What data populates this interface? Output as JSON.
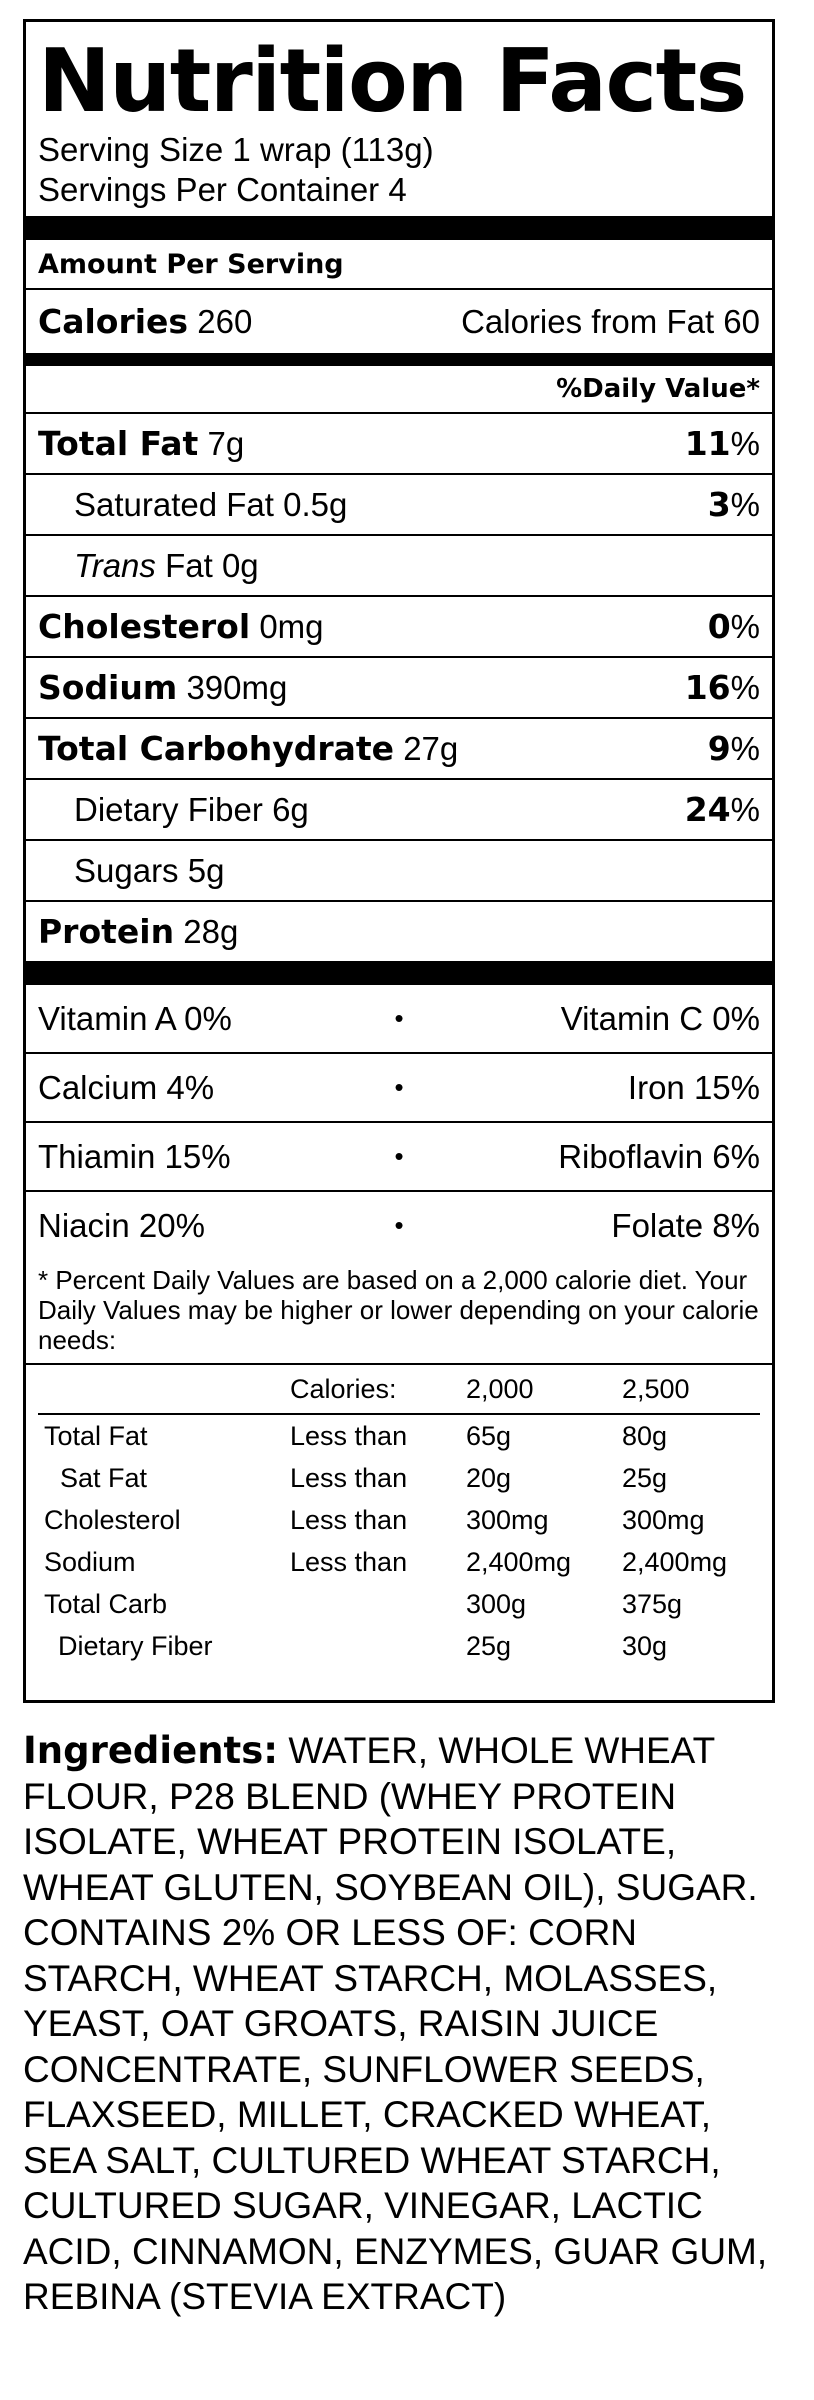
{
  "title": "Nutrition Facts",
  "serving_size": "Serving Size 1 wrap (113g)",
  "servings_per_container": "Servings Per Container 4",
  "amount_per_serving": "Amount Per Serving",
  "calories": {
    "label": "Calories",
    "value": "260",
    "from_fat": "Calories from Fat 60"
  },
  "daily_value_header": "%Daily Value*",
  "nutrients": [
    {
      "name": "Total Fat",
      "amount": "7g",
      "dv": "11",
      "bold": true
    },
    {
      "name": "Saturated Fat",
      "amount": "0.5g",
      "dv": "3",
      "bold": false
    },
    {
      "name_italic": "Trans",
      "name": "Fat",
      "amount": "0g",
      "dv": "",
      "bold": false
    },
    {
      "name": "Cholesterol",
      "amount": "0mg",
      "dv": "0",
      "bold": true
    },
    {
      "name": "Sodium",
      "amount": "390mg",
      "dv": "16",
      "bold": true
    },
    {
      "name": "Total Carbohydrate",
      "amount": "27g",
      "dv": "9",
      "bold": true
    },
    {
      "name": "Dietary Fiber",
      "amount": "6g",
      "dv": "24",
      "bold": false
    },
    {
      "name": "Sugars",
      "amount": "5g",
      "dv": "",
      "bold": false
    },
    {
      "name": "Protein",
      "amount": "28g",
      "dv": "",
      "bold": true
    }
  ],
  "percent_sign": "%",
  "bullet": "•",
  "vitamins": [
    {
      "left": "Vitamin A 0%",
      "right": "Vitamin C 0%"
    },
    {
      "left": "Calcium 4%",
      "right": "Iron 15%"
    },
    {
      "left": "Thiamin 15%",
      "right": "Riboflavin 6%"
    },
    {
      "left": "Niacin 20%",
      "right": "Folate 8%"
    }
  ],
  "footnote": "* Percent Daily Values are based on a 2,000 calorie diet. Your Daily Values may be higher or lower depending on your calorie needs:",
  "dv_table": {
    "header": [
      "",
      "Calories:",
      "2,000",
      "2,500"
    ],
    "rows": [
      [
        "Total Fat",
        "Less than",
        "65g",
        "80g"
      ],
      [
        "Sat Fat",
        "Less than",
        "20g",
        "25g"
      ],
      [
        "Cholesterol",
        "Less than",
        "300mg",
        "300mg"
      ],
      [
        "Sodium",
        "Less than",
        "2,400mg",
        "2,400mg"
      ],
      [
        "Total Carb",
        "",
        "300g",
        "375g"
      ],
      [
        "Dietary Fiber",
        "",
        "25g",
        "30g"
      ]
    ]
  },
  "ingredients": {
    "label": "Ingredients:",
    "text": "WATER, WHOLE WHEAT FLOUR, P28 BLEND (WHEY PROTEIN ISOLATE, WHEAT PROTEIN ISOLATE, WHEAT GLUTEN, SOYBEAN OIL), SUGAR. CONTAINS 2% OR LESS OF: CORN STARCH, WHEAT STARCH, MOLASSES, YEAST, OAT GROATS, RAISIN JUICE CONCENTRATE, SUNFLOWER SEEDS, FLAXSEED, MILLET, CRACKED WHEAT, SEA SALT, CULTURED WHEAT STARCH, CULTURED SUGAR, VINEGAR, LACTIC ACID, CINNAMON, ENZYMES, GUAR GUM, REBINA (STEVIA EXTRACT)"
  }
}
